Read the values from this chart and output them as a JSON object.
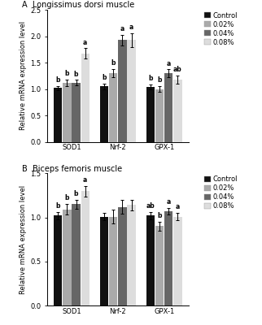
{
  "panel_A": {
    "title": "A  Longissimus dorsi muscle",
    "groups": [
      "SOD1",
      "Nrf-2",
      "GPX-1"
    ],
    "bars": {
      "Control": [
        1.02,
        1.05,
        1.04
      ],
      "0.02%": [
        1.12,
        1.3,
        1.0
      ],
      "0.04%": [
        1.12,
        1.93,
        1.3
      ],
      "0.08%": [
        1.67,
        1.93,
        1.18
      ]
    },
    "errors": {
      "Control": [
        0.04,
        0.05,
        0.04
      ],
      "0.02%": [
        0.06,
        0.08,
        0.05
      ],
      "0.04%": [
        0.05,
        0.1,
        0.07
      ],
      "0.08%": [
        0.1,
        0.13,
        0.08
      ]
    },
    "labels": {
      "Control": [
        "b",
        "b",
        "b"
      ],
      "0.02%": [
        "b",
        "b",
        "b"
      ],
      "0.04%": [
        "b",
        "a",
        "a"
      ],
      "0.08%": [
        "a",
        "a",
        "ab"
      ]
    },
    "ylim": [
      0,
      2.5
    ],
    "yticks": [
      0.0,
      0.5,
      1.0,
      1.5,
      2.0,
      2.5
    ],
    "ylabel": "Relative mRNA expression level"
  },
  "panel_B": {
    "title": "B  Biceps femoris muscle",
    "groups": [
      "SOD1",
      "Nrf-2",
      "GPX-1"
    ],
    "bars": {
      "Control": [
        1.02,
        1.01,
        1.02
      ],
      "0.02%": [
        1.09,
        1.01,
        0.9
      ],
      "0.04%": [
        1.15,
        1.12,
        1.07
      ],
      "0.08%": [
        1.3,
        1.14,
        1.01
      ]
    },
    "errors": {
      "Control": [
        0.04,
        0.04,
        0.04
      ],
      "0.02%": [
        0.06,
        0.08,
        0.05
      ],
      "0.04%": [
        0.05,
        0.08,
        0.04
      ],
      "0.08%": [
        0.06,
        0.06,
        0.04
      ]
    },
    "labels": {
      "Control": [
        "b",
        "",
        "ab"
      ],
      "0.02%": [
        "b",
        "",
        "b"
      ],
      "0.04%": [
        "b",
        "",
        "a"
      ],
      "0.08%": [
        "a",
        "",
        "a"
      ]
    },
    "ylim": [
      0,
      1.5
    ],
    "yticks": [
      0.0,
      0.5,
      1.0,
      1.5
    ],
    "ylabel": "Relative mRNA expression level"
  },
  "bar_colors": {
    "Control": "#111111",
    "0.02%": "#aaaaaa",
    "0.04%": "#666666",
    "0.08%": "#dddddd"
  },
  "legend_labels": [
    "Control",
    "0.02%",
    "0.04%",
    "0.08%"
  ],
  "legend_colors": [
    "#111111",
    "#aaaaaa",
    "#666666",
    "#dddddd"
  ],
  "bar_width": 0.13,
  "font_size": 6.0,
  "label_font_size": 5.5,
  "title_font_size": 7.0
}
